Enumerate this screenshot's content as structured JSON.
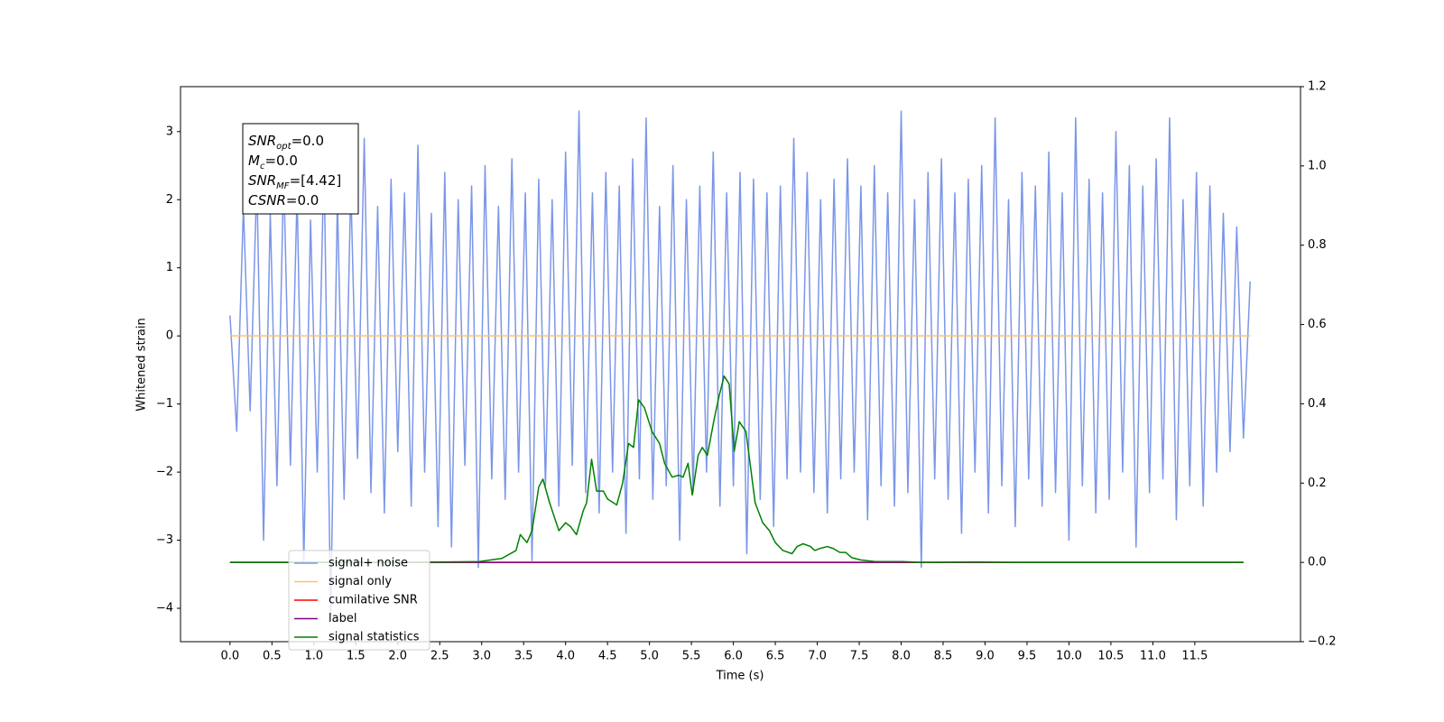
{
  "chart_data": {
    "type": "line",
    "xlabel": "Time (s)",
    "ylabel": "Whitened strain",
    "xlim": [
      -0.59,
      12.76
    ],
    "ylim": [
      -4.49,
      3.66
    ],
    "y2lim": [
      -0.2,
      1.2
    ],
    "xticks": [
      {
        "value": 0,
        "label": "0.0"
      },
      {
        "value": 0.5,
        "label": "0.5"
      },
      {
        "value": 1,
        "label": "1.0"
      },
      {
        "value": 1.5,
        "label": "1.5"
      },
      {
        "value": 2,
        "label": "2.0"
      },
      {
        "value": 2.5,
        "label": "2.5"
      },
      {
        "value": 3,
        "label": "3.0"
      },
      {
        "value": 3.5,
        "label": "3.5"
      },
      {
        "value": 4,
        "label": "4.0"
      },
      {
        "value": 4.5,
        "label": "4.5"
      },
      {
        "value": 5,
        "label": "5.0"
      },
      {
        "value": 5.5,
        "label": "5.5"
      },
      {
        "value": 6,
        "label": "6.0"
      },
      {
        "value": 6.5,
        "label": "6.5"
      },
      {
        "value": 7,
        "label": "7.0"
      },
      {
        "value": 7.5,
        "label": "7.5"
      },
      {
        "value": 8,
        "label": "8.0"
      },
      {
        "value": 8.5,
        "label": "8.5"
      },
      {
        "value": 9,
        "label": "9.0"
      },
      {
        "value": 9.5,
        "label": "9.5"
      },
      {
        "value": 10,
        "label": "10.0"
      },
      {
        "value": 10.5,
        "label": "10.5"
      },
      {
        "value": 11,
        "label": "11.0"
      },
      {
        "value": 11.5,
        "label": "11.5"
      }
    ],
    "yticks": [
      {
        "value": -4,
        "label": "−4"
      },
      {
        "value": -3,
        "label": "−3"
      },
      {
        "value": -2,
        "label": "−2"
      },
      {
        "value": -1,
        "label": "−1"
      },
      0,
      1,
      2,
      3
    ],
    "y2ticks": [
      {
        "value": -0.2,
        "label": "−0.2"
      },
      {
        "value": 0,
        "label": "0.0"
      },
      {
        "value": 0.2,
        "label": "0.2"
      },
      {
        "value": 0.4,
        "label": "0.4"
      },
      {
        "value": 0.6,
        "label": "0.6"
      },
      {
        "value": 0.8,
        "label": "0.8"
      },
      {
        "value": 1,
        "label": "1.0"
      },
      {
        "value": 1.2,
        "label": "1.2"
      }
    ],
    "grid": false,
    "legend": "lower left",
    "annotation_box": [
      {
        "symbol": "SNR",
        "subscript": "opt",
        "text": "=0.0"
      },
      {
        "symbol": "M",
        "subscript": "c",
        "text": "=0.0"
      },
      {
        "symbol": "SNR",
        "subscript": "MF",
        "text": "=[4.42]"
      },
      {
        "symbol": "CSNR",
        "text": "=0.0"
      }
    ],
    "series": [
      {
        "name": "signal+ noise",
        "color": "#7b96e8",
        "axis": "y",
        "x": [
          0,
          0.08,
          0.16,
          0.24,
          0.32,
          0.4,
          0.48,
          0.56,
          0.64,
          0.72,
          0.8,
          0.88,
          0.96,
          1.04,
          1.12,
          1.2,
          1.28,
          1.36,
          1.44,
          1.52,
          1.6,
          1.68,
          1.76,
          1.84,
          1.92,
          2,
          2.08,
          2.16,
          2.24,
          2.32,
          2.4,
          2.48,
          2.56,
          2.64,
          2.72,
          2.8,
          2.88,
          2.96,
          3.04,
          3.12,
          3.2,
          3.28,
          3.36,
          3.44,
          3.52,
          3.6,
          3.68,
          3.76,
          3.84,
          3.92,
          4,
          4.08,
          4.16,
          4.24,
          4.32,
          4.4,
          4.48,
          4.56,
          4.64,
          4.72,
          4.8,
          4.88,
          4.96,
          5.04,
          5.12,
          5.2,
          5.28,
          5.36,
          5.44,
          5.52,
          5.6,
          5.68,
          5.76,
          5.84,
          5.92,
          6,
          6.08,
          6.16,
          6.24,
          6.32,
          6.4,
          6.48,
          6.56,
          6.64,
          6.72,
          6.8,
          6.88,
          6.96,
          7.04,
          7.12,
          7.2,
          7.28,
          7.36,
          7.44,
          7.52,
          7.6,
          7.68,
          7.76,
          7.84,
          7.92,
          8,
          8.08,
          8.16,
          8.24,
          8.32,
          8.4,
          8.48,
          8.56,
          8.64,
          8.72,
          8.8,
          8.88,
          8.96,
          9.04,
          9.12,
          9.2,
          9.28,
          9.36,
          9.44,
          9.52,
          9.6,
          9.68,
          9.76,
          9.84,
          9.92,
          10,
          10.08,
          10.16,
          10.24,
          10.32,
          10.4,
          10.48,
          10.56,
          10.64,
          10.72,
          10.8,
          10.88,
          10.96,
          11.04,
          11.12,
          11.2,
          11.28,
          11.36,
          11.44,
          11.52,
          11.6,
          11.68,
          11.76,
          11.84,
          11.92,
          12,
          12.08,
          12.16
        ],
        "values": [
          0.3,
          -1.4,
          1.9,
          -1.1,
          2.3,
          -3.0,
          1.8,
          -2.2,
          2.4,
          -1.9,
          2.1,
          -3.3,
          1.7,
          -2.0,
          2.6,
          -4.1,
          2.0,
          -2.4,
          2.2,
          -1.8,
          2.9,
          -2.3,
          1.9,
          -2.6,
          2.3,
          -1.7,
          2.1,
          -2.5,
          2.8,
          -2.0,
          1.8,
          -2.8,
          2.4,
          -3.1,
          2.0,
          -1.9,
          2.2,
          -3.4,
          2.5,
          -2.1,
          1.9,
          -2.4,
          2.6,
          -2.0,
          2.1,
          -3.3,
          2.3,
          -2.2,
          2.0,
          -2.5,
          2.7,
          -1.9,
          3.3,
          -2.3,
          2.1,
          -2.6,
          2.4,
          -2.0,
          2.2,
          -2.9,
          2.6,
          -2.1,
          3.2,
          -2.4,
          1.9,
          -2.2,
          2.5,
          -3.0,
          2.0,
          -2.3,
          2.2,
          -2.0,
          2.7,
          -2.5,
          2.1,
          -2.2,
          2.4,
          -3.2,
          2.3,
          -2.4,
          2.1,
          -2.8,
          2.2,
          -2.1,
          2.9,
          -2.0,
          2.4,
          -2.3,
          2.0,
          -2.6,
          2.3,
          -2.1,
          2.6,
          -2.0,
          2.2,
          -2.7,
          2.5,
          -2.2,
          2.1,
          -2.5,
          3.3,
          -2.3,
          2.0,
          -3.4,
          2.4,
          -2.1,
          2.6,
          -2.4,
          2.1,
          -2.9,
          2.3,
          -2.0,
          2.5,
          -2.6,
          3.2,
          -2.2,
          2.0,
          -2.8,
          2.4,
          -2.1,
          2.2,
          -2.5,
          2.7,
          -2.3,
          2.1,
          -3.0,
          3.2,
          -2.2,
          2.3,
          -2.6,
          2.1,
          -2.4,
          3.0,
          -2.0,
          2.5,
          -3.1,
          2.2,
          -2.3,
          2.6,
          -2.1,
          3.2,
          -2.7,
          2.0,
          -2.2,
          2.4,
          -2.5,
          2.2,
          -2.0,
          1.8,
          -1.7,
          1.6,
          -1.5,
          0.8
        ]
      },
      {
        "name": "signal only",
        "color": "#ffbf70",
        "axis": "y",
        "x": [
          0,
          12.16
        ],
        "values": [
          0,
          0
        ]
      },
      {
        "name": "cumilative SNR",
        "color": "#ff0000",
        "axis": "y2",
        "x": [
          0,
          12.08
        ],
        "values": [
          0,
          0
        ]
      },
      {
        "name": "label",
        "color": "#800080",
        "axis": "y2",
        "x": [
          0,
          12.08
        ],
        "values": [
          0,
          0
        ]
      },
      {
        "name": "signal statistics",
        "color": "#008000",
        "axis": "y2",
        "x": [
          0,
          1,
          2,
          2.97,
          3.24,
          3.41,
          3.46,
          3.54,
          3.6,
          3.68,
          3.73,
          3.81,
          3.92,
          4,
          4.06,
          4.13,
          4.21,
          4.25,
          4.31,
          4.37,
          4.45,
          4.5,
          4.61,
          4.68,
          4.75,
          4.81,
          4.87,
          4.94,
          5.03,
          5.12,
          5.18,
          5.27,
          5.35,
          5.4,
          5.46,
          5.51,
          5.58,
          5.63,
          5.69,
          5.77,
          5.83,
          5.89,
          5.95,
          6.01,
          6.07,
          6.15,
          6.26,
          6.35,
          6.43,
          6.5,
          6.59,
          6.7,
          6.76,
          6.83,
          6.92,
          6.97,
          7.03,
          7.12,
          7.19,
          7.27,
          7.34,
          7.41,
          7.52,
          7.69,
          8.02,
          8.24,
          8.9,
          9.34,
          10,
          11,
          12.08
        ],
        "values": [
          0,
          0,
          0,
          0.002,
          0.01,
          0.03,
          0.07,
          0.05,
          0.08,
          0.19,
          0.21,
          0.15,
          0.08,
          0.1,
          0.09,
          0.07,
          0.13,
          0.15,
          0.26,
          0.18,
          0.18,
          0.16,
          0.145,
          0.2,
          0.3,
          0.29,
          0.41,
          0.39,
          0.33,
          0.3,
          0.25,
          0.215,
          0.22,
          0.215,
          0.25,
          0.17,
          0.27,
          0.29,
          0.27,
          0.36,
          0.42,
          0.47,
          0.45,
          0.28,
          0.355,
          0.33,
          0.15,
          0.1,
          0.08,
          0.05,
          0.03,
          0.022,
          0.04,
          0.047,
          0.04,
          0.03,
          0.035,
          0.04,
          0.035,
          0.025,
          0.025,
          0.012,
          0.006,
          0.002,
          0.002,
          0,
          0.001,
          0,
          0,
          0,
          0
        ]
      }
    ]
  }
}
